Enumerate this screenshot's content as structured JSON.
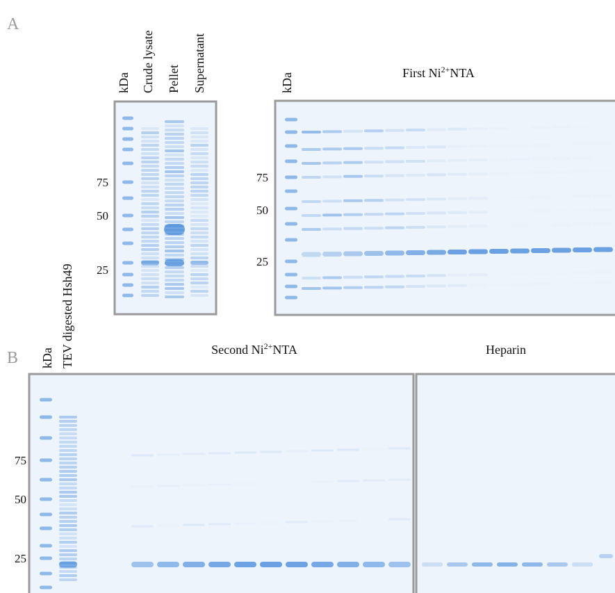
{
  "panel_a": {
    "label": "A",
    "gel_1": {
      "lane_labels": [
        "kDa",
        "Crude lysate",
        "Pellet",
        "Supernatant"
      ],
      "markers": [
        "75",
        "50",
        "25"
      ]
    },
    "gel_2": {
      "lane_label": "kDa",
      "title": {
        "text": "First Ni",
        "superscript": "2+",
        "suffix": "NTA"
      },
      "markers": [
        "75",
        "50",
        "25"
      ]
    }
  },
  "panel_b": {
    "label": "B",
    "lane_labels": [
      "kDa",
      "TEV digested Hsh49"
    ],
    "gel_3": {
      "title": {
        "text": "Second Ni",
        "superscript": "2+",
        "suffix": "NTA"
      },
      "markers": [
        "75",
        "50",
        "25"
      ]
    },
    "gel_4": {
      "title": "Heparin"
    }
  }
}
